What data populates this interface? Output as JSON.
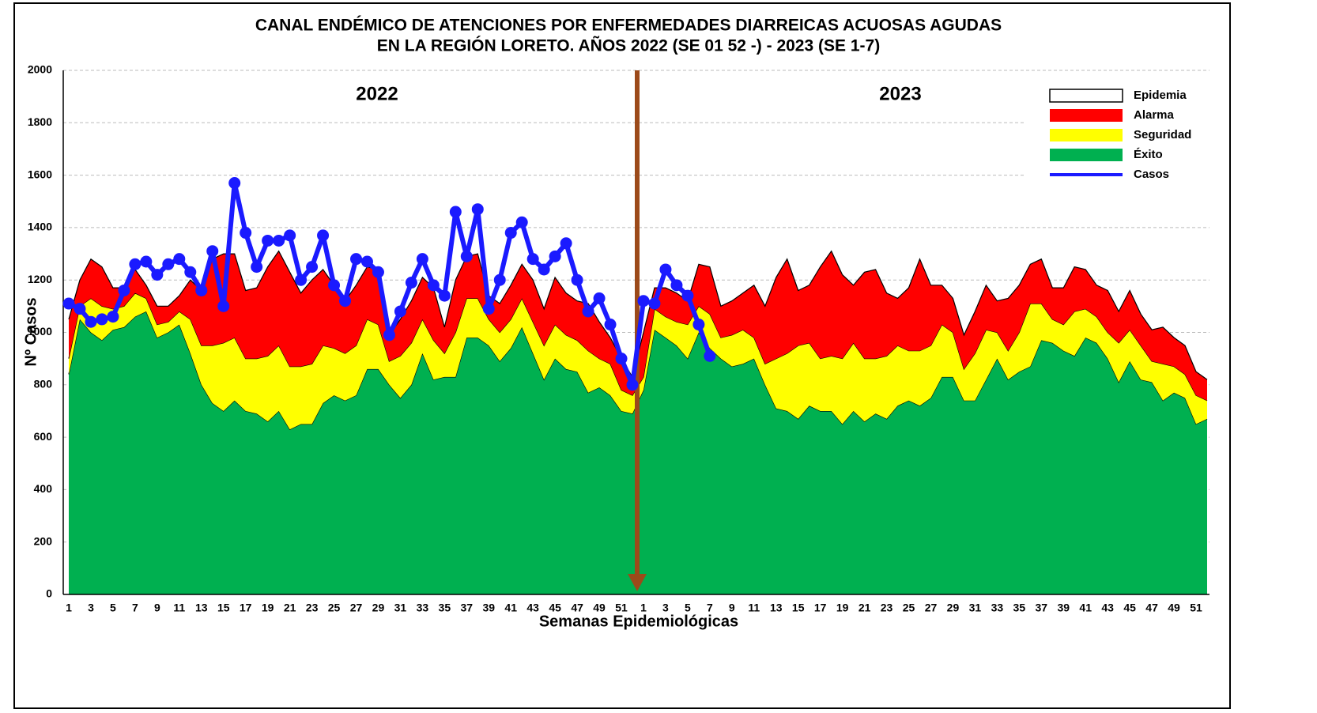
{
  "chart_data": {
    "type": "stacked-area",
    "title": [
      "CANAL ENDÉMICO DE ATENCIONES POR ENFERMEDADES DIARREICAS ACUOSAS AGUDAS",
      "EN LA REGIÓN LORETO.  AÑOS 2022 (SE 01 52 -) - 2023 (SE  1-7)"
    ],
    "y_label": "Nº Casos",
    "x_label": "Semanas Epidemiológicas",
    "annotations": [
      "2022",
      "2023"
    ],
    "categories": [
      "1",
      null,
      "3",
      null,
      "5",
      null,
      "7",
      null,
      "9",
      null,
      "11",
      null,
      "13",
      null,
      "15",
      null,
      "17",
      null,
      "19",
      null,
      "21",
      null,
      "23",
      null,
      "25",
      null,
      "27",
      null,
      "29",
      null,
      "31",
      null,
      "33",
      null,
      "35",
      null,
      "37",
      null,
      "39",
      null,
      "41",
      null,
      "43",
      null,
      "45",
      null,
      "47",
      null,
      "49",
      null,
      "51",
      null,
      "1",
      null,
      "3",
      null,
      "5",
      null,
      "7",
      null,
      "9",
      null,
      "11",
      null,
      "13",
      null,
      "15",
      null,
      "17",
      null,
      "19",
      null,
      "21",
      null,
      "23",
      null,
      "25",
      null,
      "27",
      null,
      "29",
      null,
      "31",
      null,
      "33",
      null,
      "35",
      null,
      "37",
      null,
      "39",
      null,
      "41",
      null,
      "43",
      null,
      "45",
      null,
      "47",
      null,
      "49",
      null,
      "51",
      null
    ],
    "ylim": [
      0,
      2000
    ],
    "yticks": [
      0,
      200,
      400,
      600,
      800,
      1000,
      1200,
      1400,
      1600,
      1800,
      2000
    ],
    "grid": true,
    "legend": "upper right",
    "series": [
      {
        "name": "Epidemia",
        "color": "#ffffff",
        "style": "area"
      },
      {
        "name": "Alarma",
        "color": "#ff0000",
        "style": "area",
        "values": [
          150,
          100,
          150,
          150,
          80,
          70,
          90,
          50,
          70,
          60,
          60,
          150,
          210,
          330,
          340,
          320,
          260,
          270,
          340,
          360,
          360,
          280,
          320,
          290,
          240,
          200,
          230,
          200,
          210,
          100,
          140,
          160,
          160,
          200,
          100,
          200,
          160,
          170,
          90,
          110,
          130,
          130,
          160,
          140,
          180,
          160,
          150,
          180,
          140,
          100,
          120,
          70,
          170,
          80,
          110,
          110,
          90,
          160,
          180,
          120,
          130,
          140,
          200,
          220,
          310,
          360,
          210,
          220,
          350,
          400,
          320,
          220,
          330,
          340,
          240,
          180,
          240,
          350,
          230,
          150,
          130,
          130,
          160,
          170,
          120,
          200,
          180,
          150,
          170,
          120,
          140,
          170,
          150,
          120,
          160,
          120,
          150,
          120,
          120,
          140,
          110,
          110,
          90,
          80
        ]
      },
      {
        "name": "Seguridad",
        "color": "#ffff00",
        "style": "area",
        "values": [
          60,
          50,
          130,
          130,
          80,
          80,
          90,
          50,
          50,
          40,
          50,
          130,
          150,
          220,
          260,
          240,
          200,
          210,
          250,
          250,
          240,
          220,
          230,
          220,
          180,
          180,
          190,
          190,
          170,
          90,
          160,
          160,
          130,
          150,
          90,
          170,
          150,
          150,
          100,
          110,
          110,
          110,
          120,
          130,
          130,
          130,
          120,
          160,
          110,
          120,
          80,
          70,
          50,
          80,
          80,
          90,
          130,
          100,
          130,
          80,
          120,
          130,
          80,
          80,
          190,
          220,
          280,
          240,
          200,
          210,
          250,
          260,
          240,
          210,
          240,
          230,
          190,
          210,
          200,
          200,
          170,
          120,
          180,
          190,
          100,
          110,
          150,
          240,
          140,
          90,
          100,
          170,
          110,
          100,
          100,
          150,
          120,
          130,
          80,
          140,
          100,
          90,
          110,
          70
        ]
      },
      {
        "name": "Éxito",
        "color": "#00b050",
        "style": "area",
        "values": [
          840,
          1050,
          1000,
          970,
          1010,
          1020,
          1060,
          1080,
          980,
          1000,
          1030,
          920,
          800,
          730,
          700,
          740,
          700,
          690,
          660,
          700,
          630,
          650,
          650,
          730,
          760,
          740,
          760,
          860,
          860,
          800,
          750,
          800,
          920,
          820,
          830,
          830,
          980,
          980,
          950,
          890,
          940,
          1020,
          920,
          820,
          900,
          860,
          850,
          770,
          790,
          760,
          700,
          690,
          780,
          1010,
          980,
          950,
          900,
          1000,
          940,
          900,
          870,
          880,
          900,
          800,
          710,
          700,
          670,
          720,
          700,
          700,
          650,
          700,
          660,
          690,
          670,
          720,
          740,
          720,
          750,
          830,
          830,
          740,
          740,
          820,
          900,
          820,
          850,
          870,
          970,
          960,
          930,
          910,
          980,
          960,
          900,
          810,
          890,
          820,
          810,
          740,
          770,
          750,
          650,
          670
        ]
      },
      {
        "name": "Casos",
        "color": "#1a1aff",
        "style": "line",
        "values": [
          1110,
          1090,
          1040,
          1050,
          1060,
          1160,
          1260,
          1270,
          1220,
          1260,
          1280,
          1230,
          1160,
          1310,
          1100,
          1570,
          1380,
          1250,
          1350,
          1350,
          1370,
          1200,
          1250,
          1370,
          1180,
          1120,
          1280,
          1270,
          1230,
          990,
          1080,
          1190,
          1280,
          1180,
          1140,
          1460,
          1290,
          1470,
          1090,
          1200,
          1380,
          1420,
          1280,
          1240,
          1290,
          1340,
          1200,
          1080,
          1130,
          1030,
          900,
          800,
          1120,
          1110,
          1240,
          1180,
          1140,
          1030,
          910,
          null,
          null,
          null,
          null,
          null,
          null,
          null,
          null,
          null,
          null,
          null,
          null,
          null,
          null,
          null,
          null,
          null,
          null,
          null,
          null,
          null,
          null,
          null,
          null,
          null,
          null,
          null,
          null,
          null,
          null,
          null,
          null,
          null,
          null,
          null,
          null,
          null,
          null,
          null,
          null,
          null,
          null,
          null,
          null,
          null
        ]
      }
    ]
  }
}
